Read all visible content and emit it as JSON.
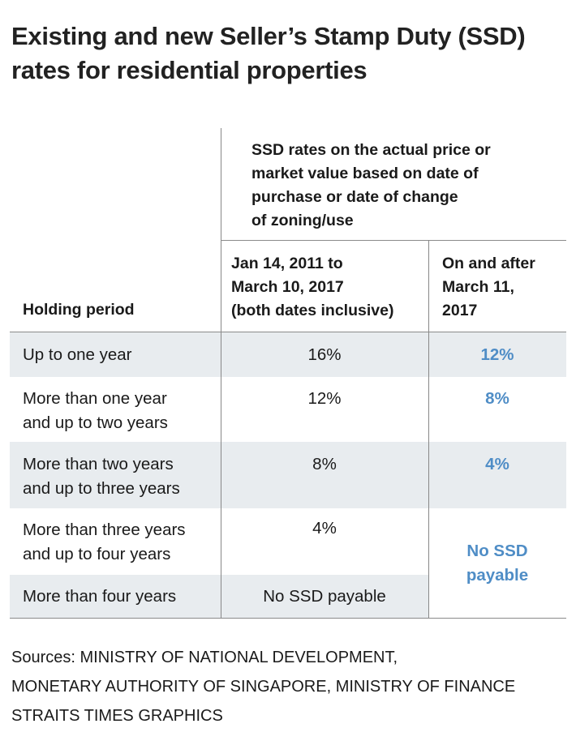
{
  "title": "Existing and new Seller’s Stamp Duty (SSD)\nrates for residential properties",
  "header": {
    "group": "SSD rates on the actual price or\nmarket value based on date of\npurchase or date of change\nof zoning/use",
    "col1": "Holding period",
    "col2": "Jan 14, 2011 to\nMarch 10, 2017\n(both dates inclusive)",
    "col3": "On and after\nMarch 11,\n2017"
  },
  "rows": [
    {
      "period": "Up to one year",
      "old": "16%",
      "new": "12%"
    },
    {
      "period": "More than one year\nand up to two years",
      "old": "12%",
      "new": "8%"
    },
    {
      "period": "More than two years\nand up to three years",
      "old": "8%",
      "new": "4%"
    },
    {
      "period": "More than three years\nand up to four years",
      "old": "4%",
      "new": ""
    },
    {
      "period": "More than four years",
      "old": "No SSD payable",
      "new": ""
    }
  ],
  "merged_new": "No SSD\npayable",
  "colors": {
    "accent_blue": "#4f8dc6",
    "band_gray": "#e8ecef",
    "rule": "#8a8a8a"
  },
  "sources": "Sources: MINISTRY OF NATIONAL DEVELOPMENT,\nMONETARY AUTHORITY OF SINGAPORE, MINISTRY OF FINANCE\nSTRAITS TIMES GRAPHICS"
}
